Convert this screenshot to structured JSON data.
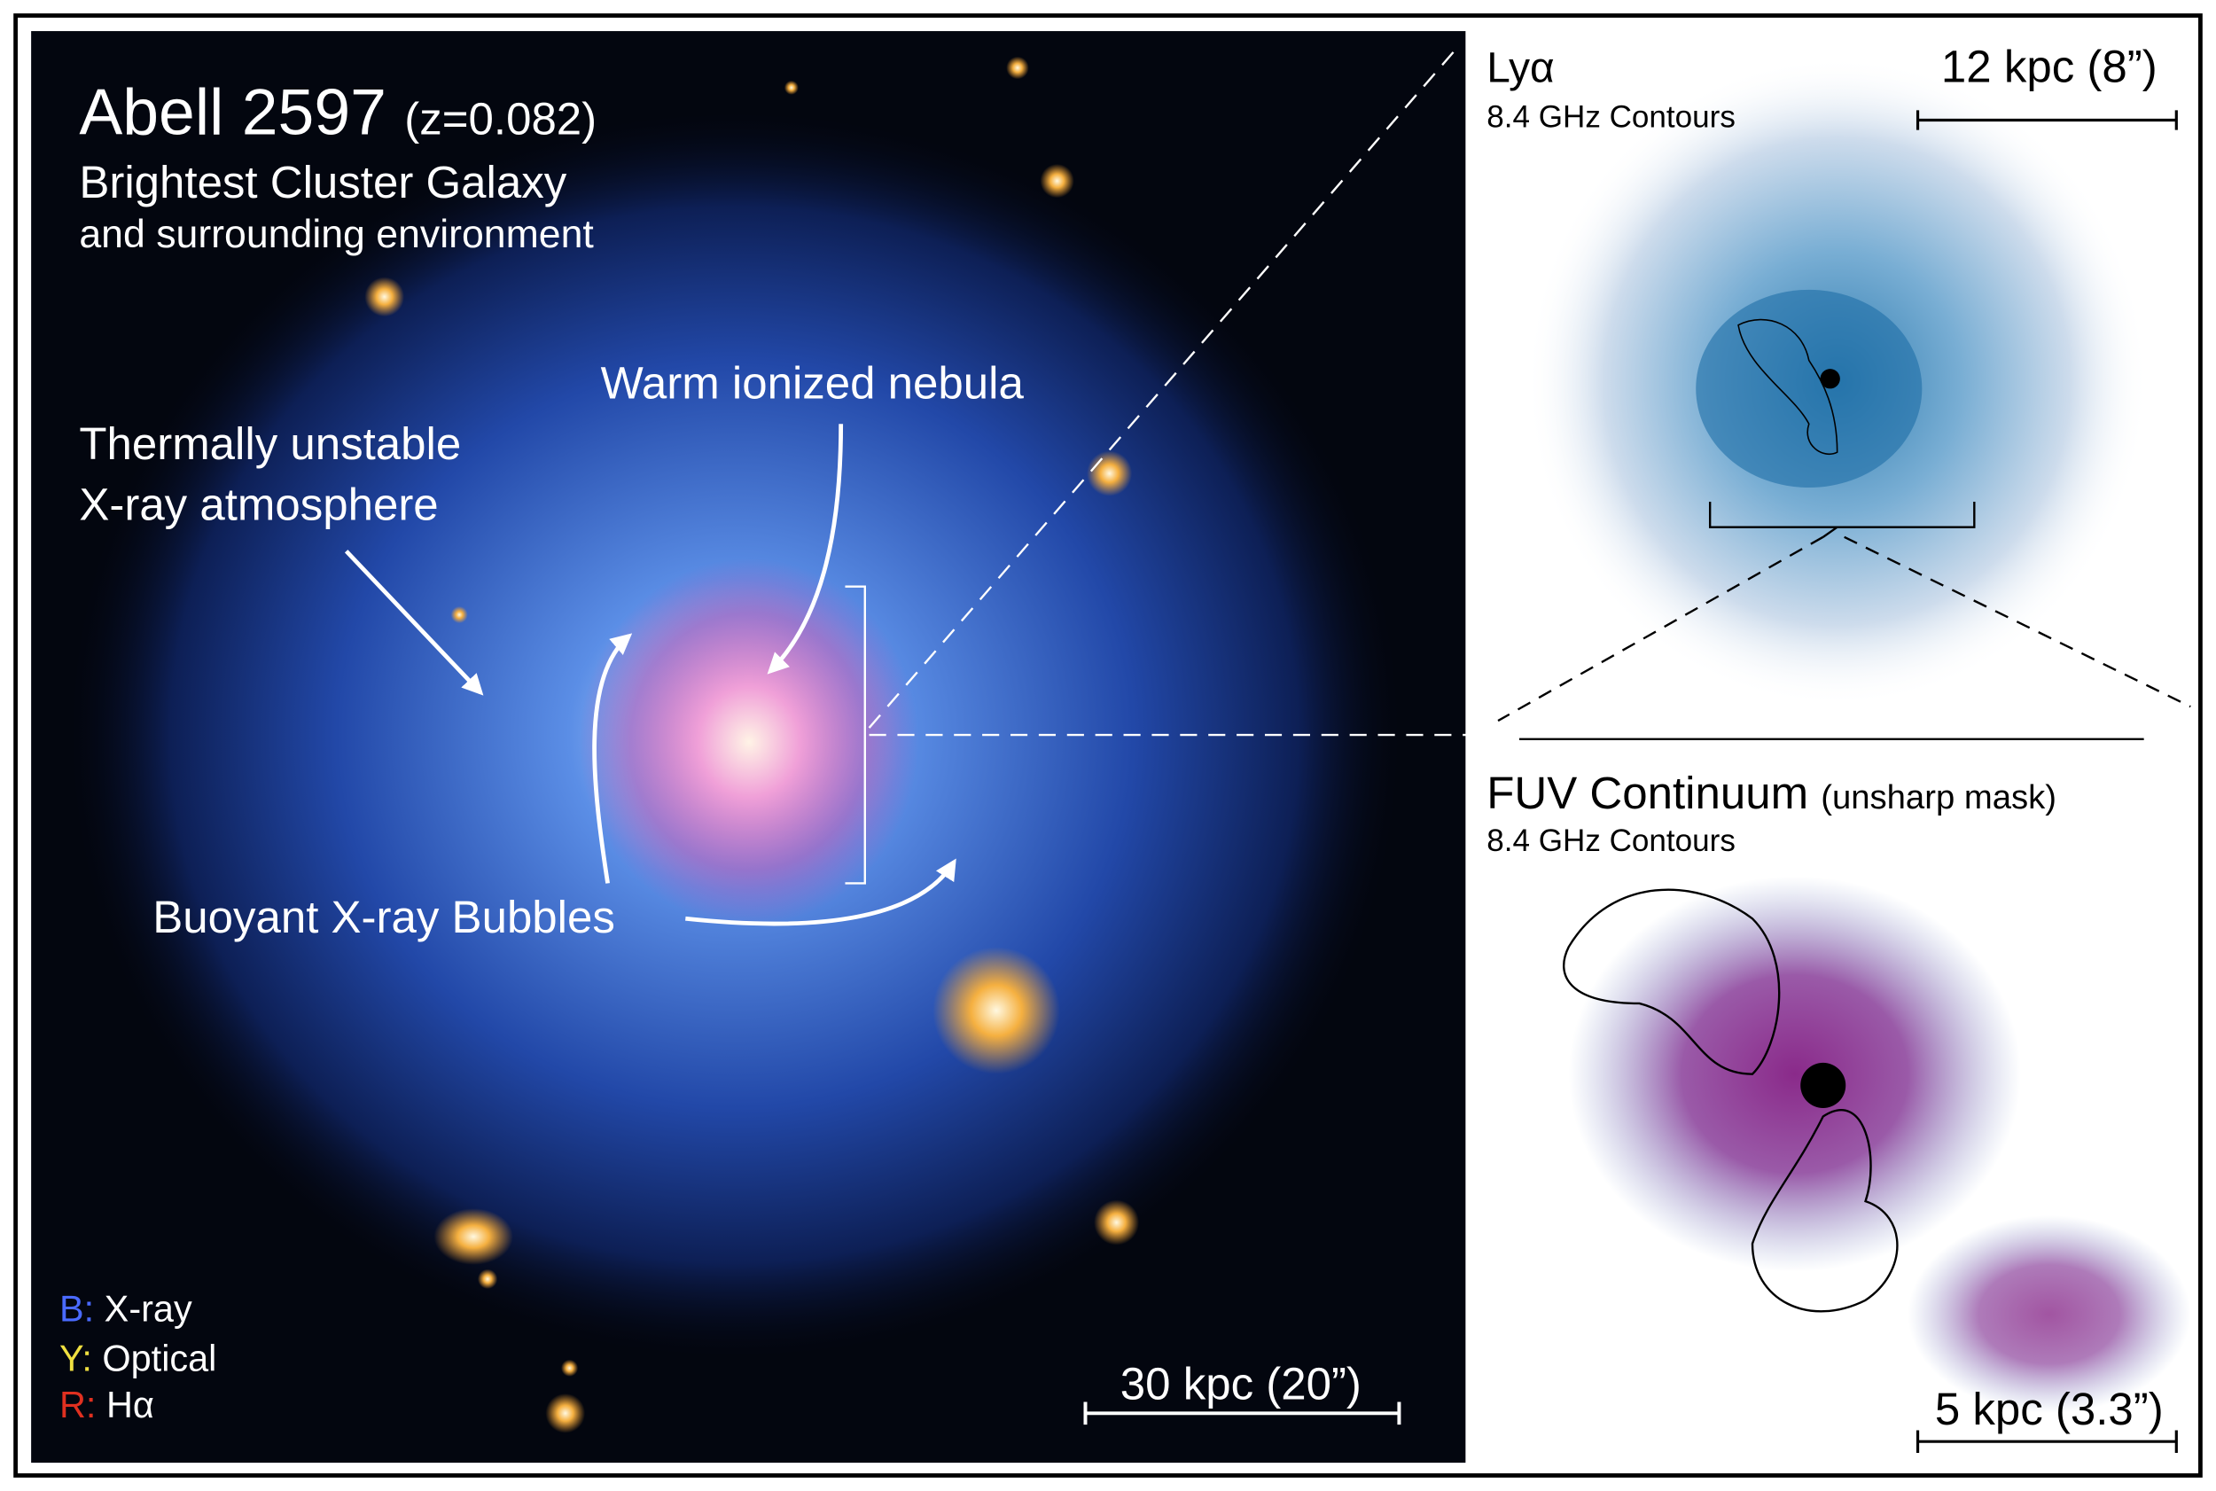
{
  "main_panel": {
    "title": "Abell 2597",
    "redshift": "(z=0.082)",
    "subtitle": [
      "Brightest Cluster Galaxy",
      "and surrounding environment"
    ],
    "annotations": {
      "nebula": "Warm ionized nebula",
      "atmosphere": [
        "Thermally unstable",
        "X-ray atmosphere"
      ],
      "bubbles": "Buoyant X-ray Bubbles"
    },
    "legend": [
      {
        "key": "B:",
        "label": "X-ray"
      },
      {
        "key": "Y:",
        "label": "Optical"
      },
      {
        "key": "R:",
        "label": "Hα"
      }
    ],
    "scale_bar": "30 kpc (20”)"
  },
  "top_panel": {
    "title": "Lyα",
    "subtitle": "8.4 GHz Contours",
    "scale_bar": "12 kpc (8”)"
  },
  "bottom_panel": {
    "title": "FUV Continuum",
    "note": "(unsharp mask)",
    "subtitle": "8.4 GHz Contours",
    "scale_bar": "5 kpc (3.3”)"
  }
}
